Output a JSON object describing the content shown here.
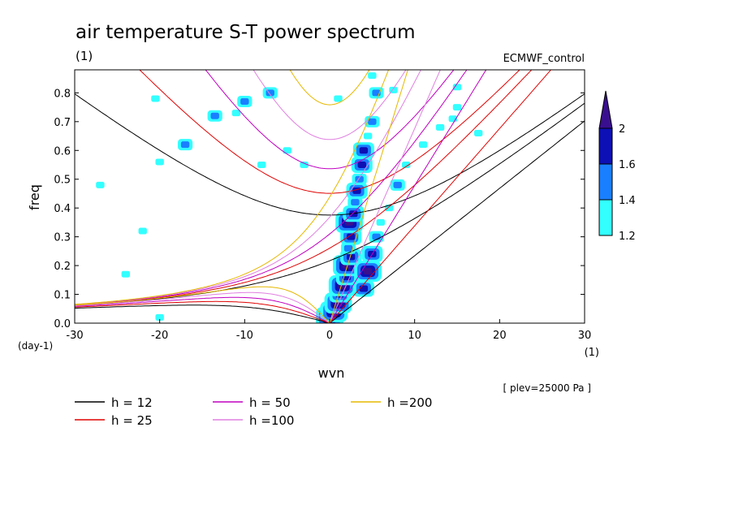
{
  "chart_data": {
    "type": "heatmap",
    "title": "air temperature S-T power spectrum",
    "units_label": "(1)",
    "experiment": "ECMWF_control",
    "xlabel": "wvn",
    "ylabel": "freq",
    "y_units": "(day-1)",
    "x_units": "(1)",
    "xlim": [
      -30,
      30
    ],
    "ylim": [
      0,
      0.88
    ],
    "x_ticks": [
      "-30",
      "-20",
      "-10",
      "0",
      "10",
      "20",
      "30"
    ],
    "y_ticks": [
      "0.0",
      "0.1",
      "0.2",
      "0.3",
      "0.4",
      "0.5",
      "0.6",
      "0.7",
      "0.8"
    ],
    "colorbar": {
      "levels": [
        "1.2",
        "1.4",
        "1.6",
        "2"
      ],
      "colors": [
        "#33ffff",
        "#1a7fff",
        "#0d10b4",
        "#3a0f8f"
      ]
    },
    "annotation": "[ plev=25000 Pa ]",
    "dispersion_curves": [
      {
        "label": "h = 12",
        "h": 12,
        "color": "#000000"
      },
      {
        "label": "h = 25",
        "h": 25,
        "color": "#e00000"
      },
      {
        "label": "h = 50",
        "h": 50,
        "color": "#c000c0"
      },
      {
        "label": "h =100",
        "h": 100,
        "color": "#e080e0"
      },
      {
        "label": "h =200",
        "h": 200,
        "color": "#e6b800"
      }
    ],
    "spectral_patches": [
      {
        "x": 0.0,
        "y": 0.02,
        "level": 4
      },
      {
        "x": 0.5,
        "y": 0.04,
        "level": 4
      },
      {
        "x": 1.0,
        "y": 0.07,
        "level": 4
      },
      {
        "x": 1.2,
        "y": 0.1,
        "level": 3
      },
      {
        "x": 1.5,
        "y": 0.13,
        "level": 4
      },
      {
        "x": 2.0,
        "y": 0.16,
        "level": 3
      },
      {
        "x": 2.0,
        "y": 0.2,
        "level": 4
      },
      {
        "x": 2.5,
        "y": 0.23,
        "level": 3
      },
      {
        "x": 2.2,
        "y": 0.26,
        "level": 2
      },
      {
        "x": 2.5,
        "y": 0.3,
        "level": 3
      },
      {
        "x": 2.3,
        "y": 0.35,
        "level": 4
      },
      {
        "x": 2.8,
        "y": 0.38,
        "level": 3
      },
      {
        "x": 3.0,
        "y": 0.42,
        "level": 2
      },
      {
        "x": 3.2,
        "y": 0.46,
        "level": 3
      },
      {
        "x": 3.5,
        "y": 0.5,
        "level": 2
      },
      {
        "x": 3.8,
        "y": 0.55,
        "level": 3
      },
      {
        "x": 4.0,
        "y": 0.6,
        "level": 3
      },
      {
        "x": 4.5,
        "y": 0.65,
        "level": 1
      },
      {
        "x": 5.0,
        "y": 0.7,
        "level": 2
      },
      {
        "x": 5.5,
        "y": 0.8,
        "level": 2
      },
      {
        "x": 5.0,
        "y": 0.86,
        "level": 1
      },
      {
        "x": 4.0,
        "y": 0.12,
        "level": 3
      },
      {
        "x": 4.5,
        "y": 0.18,
        "level": 4
      },
      {
        "x": 5.0,
        "y": 0.24,
        "level": 3
      },
      {
        "x": 5.5,
        "y": 0.3,
        "level": 2
      },
      {
        "x": 6.0,
        "y": 0.35,
        "level": 1
      },
      {
        "x": 7.0,
        "y": 0.4,
        "level": 1
      },
      {
        "x": 8.0,
        "y": 0.48,
        "level": 2
      },
      {
        "x": 9.0,
        "y": 0.55,
        "level": 1
      },
      {
        "x": 11.0,
        "y": 0.62,
        "level": 1
      },
      {
        "x": 13.0,
        "y": 0.68,
        "level": 1
      },
      {
        "x": 15.0,
        "y": 0.75,
        "level": 1
      },
      {
        "x": -10.0,
        "y": 0.77,
        "level": 2
      },
      {
        "x": -11.0,
        "y": 0.73,
        "level": 1
      },
      {
        "x": -13.5,
        "y": 0.72,
        "level": 2
      },
      {
        "x": -17.0,
        "y": 0.62,
        "level": 2
      },
      {
        "x": -20.0,
        "y": 0.56,
        "level": 1
      },
      {
        "x": -8.0,
        "y": 0.55,
        "level": 1
      },
      {
        "x": -5.0,
        "y": 0.6,
        "level": 1
      },
      {
        "x": -3.0,
        "y": 0.55,
        "level": 1
      },
      {
        "x": -7.0,
        "y": 0.8,
        "level": 2
      },
      {
        "x": -20.5,
        "y": 0.78,
        "level": 1
      },
      {
        "x": 1.0,
        "y": 0.78,
        "level": 1
      },
      {
        "x": 7.5,
        "y": 0.81,
        "level": 1
      },
      {
        "x": 14.5,
        "y": 0.71,
        "level": 1
      },
      {
        "x": 17.5,
        "y": 0.66,
        "level": 1
      },
      {
        "x": 15.0,
        "y": 0.82,
        "level": 1
      },
      {
        "x": -24.0,
        "y": 0.17,
        "level": 1
      },
      {
        "x": -20.0,
        "y": 0.02,
        "level": 1
      },
      {
        "x": -27.0,
        "y": 0.48,
        "level": 1
      },
      {
        "x": -22.0,
        "y": 0.32,
        "level": 1
      }
    ]
  }
}
